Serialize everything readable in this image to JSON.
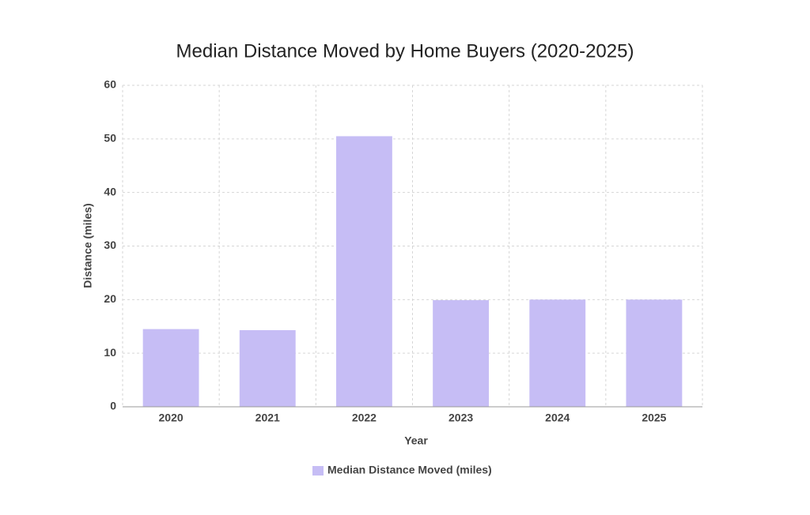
{
  "chart_data": {
    "type": "bar",
    "title": "Median Distance Moved by Home Buyers (2020-2025)",
    "x_label": "Year",
    "y_label": "Distance (miles)",
    "categories": [
      "2020",
      "2021",
      "2022",
      "2023",
      "2024",
      "2025"
    ],
    "series": [
      {
        "name": "Median Distance Moved (miles)",
        "color": "#c6bdf5",
        "values": [
          14.5,
          14.3,
          50.5,
          19.9,
          20,
          20
        ]
      }
    ],
    "ylim": [
      0,
      60
    ],
    "yticks": [
      0,
      10,
      20,
      30,
      40,
      50,
      60
    ],
    "grid": true,
    "legend": "bottom"
  }
}
